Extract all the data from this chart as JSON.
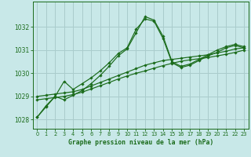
{
  "title": "Graphe pression niveau de la mer (hPa)",
  "background_color": "#c8e8e8",
  "grid_color": "#aacccc",
  "line_color": "#1a6b1a",
  "xlim": [
    -0.5,
    23.5
  ],
  "ylim": [
    1027.6,
    1033.1
  ],
  "yticks": [
    1028,
    1029,
    1030,
    1031,
    1032
  ],
  "xticks": [
    0,
    1,
    2,
    3,
    4,
    5,
    6,
    7,
    8,
    9,
    10,
    11,
    12,
    13,
    14,
    15,
    16,
    17,
    18,
    19,
    20,
    21,
    22,
    23
  ],
  "series": [
    [
      1028.1,
      1028.55,
      1029.0,
      1029.65,
      1029.3,
      1029.55,
      1029.8,
      1030.1,
      1030.45,
      1030.85,
      1031.1,
      1031.9,
      1032.35,
      1032.25,
      1031.5,
      1030.45,
      1030.25,
      1030.35,
      1030.55,
      1030.75,
      1030.9,
      1031.1,
      1031.2,
      1031.1
    ],
    [
      1028.1,
      1028.6,
      1029.0,
      1028.85,
      1029.05,
      1029.25,
      1029.55,
      1029.9,
      1030.3,
      1030.75,
      1031.05,
      1031.75,
      1032.45,
      1032.3,
      1031.6,
      1030.5,
      1030.3,
      1030.4,
      1030.6,
      1030.8,
      1031.0,
      1031.15,
      1031.25,
      1031.15
    ],
    [
      1029.0,
      1029.05,
      1029.1,
      1029.15,
      1029.2,
      1029.3,
      1029.45,
      1029.6,
      1029.75,
      1029.9,
      1030.05,
      1030.2,
      1030.35,
      1030.45,
      1030.55,
      1030.6,
      1030.65,
      1030.7,
      1030.75,
      1030.8,
      1030.88,
      1030.95,
      1031.05,
      1031.1
    ],
    [
      1028.85,
      1028.9,
      1028.95,
      1029.0,
      1029.08,
      1029.18,
      1029.32,
      1029.46,
      1029.6,
      1029.75,
      1029.88,
      1030.0,
      1030.1,
      1030.22,
      1030.33,
      1030.43,
      1030.52,
      1030.58,
      1030.63,
      1030.68,
      1030.75,
      1030.82,
      1030.9,
      1031.0
    ]
  ]
}
